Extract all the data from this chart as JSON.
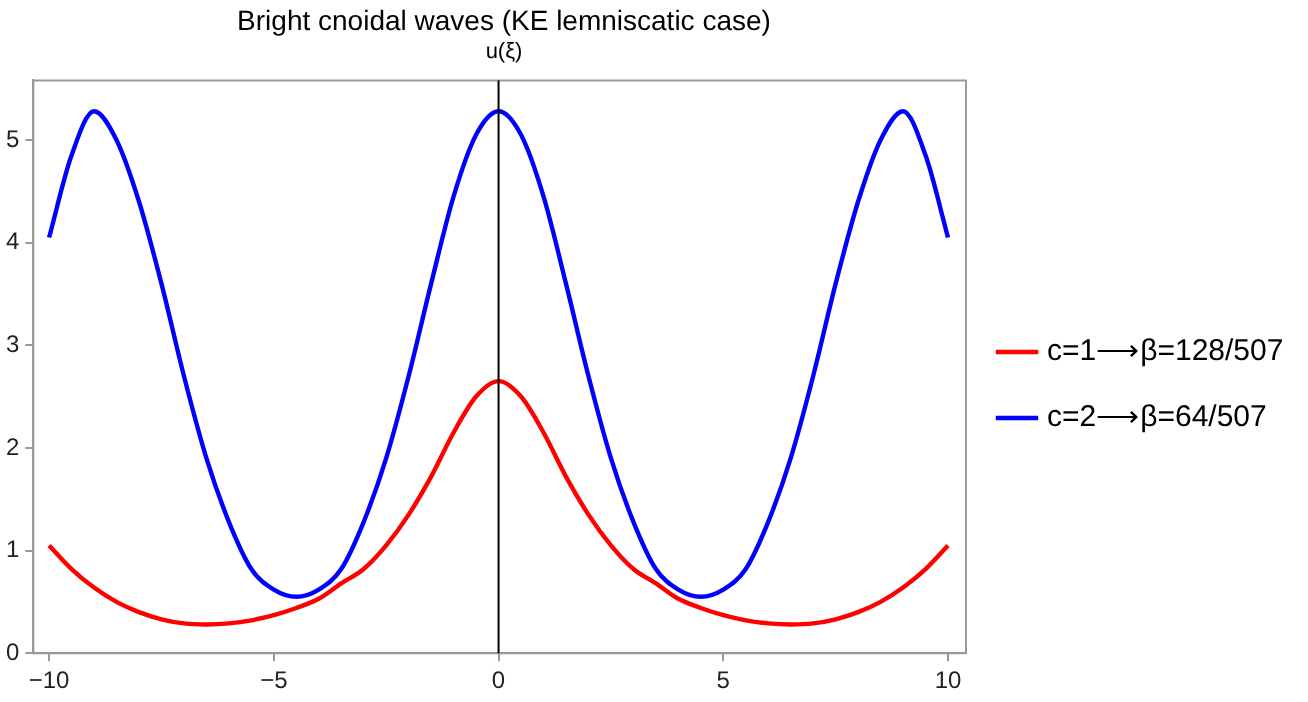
{
  "chart_data": {
    "type": "line",
    "title": "Bright cnoidal waves (KE lemniscatic case)",
    "ylabel": "u(ξ)",
    "x": [
      -10,
      -9.5,
      -9,
      -8.5,
      -8,
      -7.5,
      -7,
      -6.5,
      -6,
      -5.5,
      -5,
      -4.5,
      -4,
      -3.5,
      -3,
      -2.5,
      -2,
      -1.5,
      -1,
      -0.5,
      0,
      0.5,
      1,
      1.5,
      2,
      2.5,
      3,
      3.5,
      4,
      4.5,
      5,
      5.5,
      6,
      6.5,
      7,
      7.5,
      8,
      8.5,
      9,
      9.5,
      10
    ],
    "series": [
      {
        "name": "c=1⟶β=128/507",
        "color": "#ff0000",
        "values": [
          1.05,
          0.82,
          0.64,
          0.5,
          0.4,
          0.33,
          0.29,
          0.28,
          0.29,
          0.32,
          0.37,
          0.44,
          0.53,
          0.68,
          0.82,
          1.05,
          1.35,
          1.72,
          2.15,
          2.5,
          2.65,
          2.5,
          2.15,
          1.72,
          1.35,
          1.05,
          0.82,
          0.68,
          0.53,
          0.44,
          0.37,
          0.32,
          0.29,
          0.28,
          0.29,
          0.33,
          0.4,
          0.5,
          0.64,
          0.82,
          1.05
        ]
      },
      {
        "name": "c=2⟶β=64/507",
        "color": "#0000ff",
        "values": [
          4.05,
          4.85,
          5.28,
          5.0,
          4.4,
          3.6,
          2.7,
          1.9,
          1.28,
          0.82,
          0.62,
          0.55,
          0.62,
          0.82,
          1.28,
          1.9,
          2.7,
          3.6,
          4.45,
          5.05,
          5.28,
          5.05,
          4.45,
          3.6,
          2.7,
          1.9,
          1.28,
          0.82,
          0.62,
          0.55,
          0.62,
          0.82,
          1.28,
          1.9,
          2.7,
          3.6,
          4.4,
          5.0,
          5.28,
          4.85,
          4.05
        ]
      }
    ],
    "xlim": [
      -10.35,
      10.4
    ],
    "ylim": [
      0,
      5.58
    ],
    "xticks": [
      -10,
      -5,
      0,
      5,
      10
    ],
    "yticks": [
      0,
      1,
      2,
      3,
      4,
      5
    ],
    "ref_lines": [
      {
        "axis": "x",
        "value": 0,
        "color": "#000000"
      }
    ],
    "grid": false,
    "legend": "right",
    "marker": "none",
    "line_style": "solid"
  }
}
